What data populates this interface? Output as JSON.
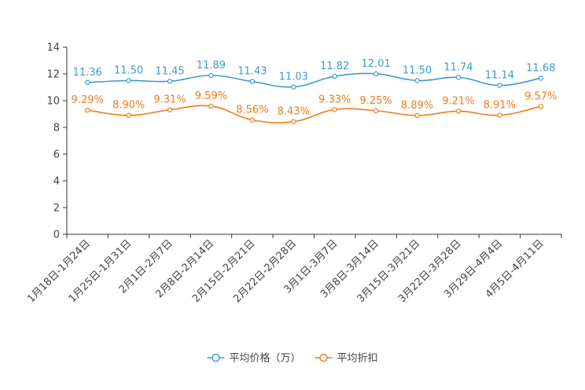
{
  "chart_data": {
    "type": "line",
    "title": "",
    "xlabel": "",
    "ylabel": "",
    "ylim": [
      0,
      14
    ],
    "yticks": [
      0,
      2,
      4,
      6,
      8,
      10,
      12,
      14
    ],
    "grid": false,
    "legend_position": "bottom-center",
    "categories": [
      "1月18日-1月24日",
      "1月25日-1月31日",
      "2月1日-2月7日",
      "2月8日-2月14日",
      "2月15日-2月21日",
      "2月22日-2月28日",
      "3月1日-3月7日",
      "3月8日-3月14日",
      "3月15日-3月21日",
      "3月22日-3月28日",
      "3月29日-4月4日",
      "4月5日-4月11日"
    ],
    "series": [
      {
        "name": "平均价格（万）",
        "color": "#3a9bd0",
        "values": [
          11.36,
          11.5,
          11.45,
          11.89,
          11.43,
          11.03,
          11.82,
          12.01,
          11.5,
          11.74,
          11.14,
          11.68
        ],
        "labels": [
          "11.36",
          "11.50",
          "11.45",
          "11.89",
          "11.43",
          "11.03",
          "11.82",
          "12.01",
          "11.50",
          "11.74",
          "11.14",
          "11.68"
        ]
      },
      {
        "name": "平均折扣",
        "color": "#f07c19",
        "values": [
          9.29,
          8.9,
          9.31,
          9.59,
          8.56,
          8.43,
          9.33,
          9.25,
          8.89,
          9.21,
          8.91,
          9.57
        ],
        "labels": [
          "9.29%",
          "8.90%",
          "9.31%",
          "9.59%",
          "8.56%",
          "8.43%",
          "9.33%",
          "9.25%",
          "8.89%",
          "9.21%",
          "8.91%",
          "9.57%"
        ]
      }
    ]
  }
}
